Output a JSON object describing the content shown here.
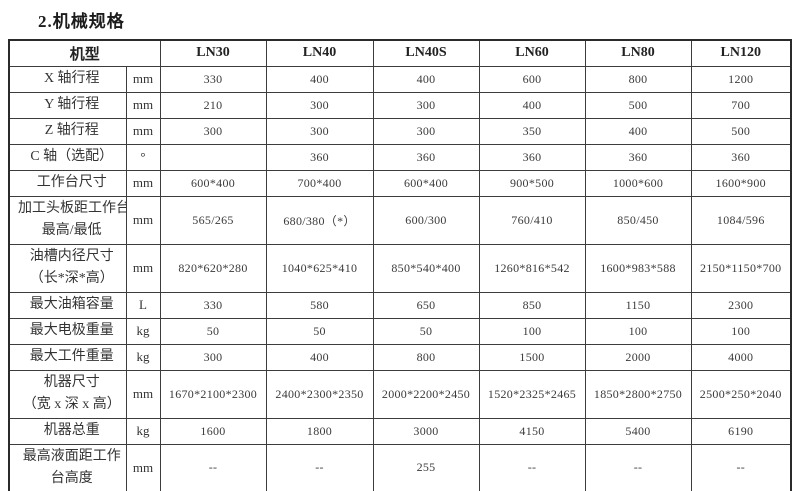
{
  "title": "2.机械规格",
  "colors": {
    "background": "#ffffff",
    "border": "#3c3c3c",
    "text": "#3a3a3a"
  },
  "table": {
    "header": {
      "model_label": "机型",
      "models": [
        "LN30",
        "LN40",
        "LN40S",
        "LN60",
        "LN80",
        "LN120"
      ]
    },
    "rows": [
      {
        "label": "X 轴行程",
        "label2": "",
        "unit": "mm",
        "values": [
          "330",
          "400",
          "400",
          "600",
          "800",
          "1200"
        ]
      },
      {
        "label": "Y 轴行程",
        "label2": "",
        "unit": "mm",
        "values": [
          "210",
          "300",
          "300",
          "400",
          "500",
          "700"
        ]
      },
      {
        "label": "Z 轴行程",
        "label2": "",
        "unit": "mm",
        "values": [
          "300",
          "300",
          "300",
          "350",
          "400",
          "500"
        ]
      },
      {
        "label": "C 轴（选配）",
        "label2": "",
        "unit": "°",
        "values": [
          "",
          "360",
          "360",
          "360",
          "360",
          "360"
        ]
      },
      {
        "label": "工作台尺寸",
        "label2": "",
        "unit": "mm",
        "values": [
          "600*400",
          "700*400",
          "600*400",
          "900*500",
          "1000*600",
          "1600*900"
        ]
      },
      {
        "label": "加工头板距工作台",
        "label2": "最高/最低",
        "unit": "mm",
        "values": [
          "565/265",
          "680/380（*）",
          "600/300",
          "760/410",
          "850/450",
          "1084/596"
        ]
      },
      {
        "label": "油槽内径尺寸",
        "label2": "（长*深*高）",
        "unit": "mm",
        "values": [
          "820*620*280",
          "1040*625*410",
          "850*540*400",
          "1260*816*542",
          "1600*983*588",
          "2150*1150*700"
        ]
      },
      {
        "label": "最大油箱容量",
        "label2": "",
        "unit": "L",
        "values": [
          "330",
          "580",
          "650",
          "850",
          "1150",
          "2300"
        ]
      },
      {
        "label": "最大电极重量",
        "label2": "",
        "unit": "kg",
        "values": [
          "50",
          "50",
          "50",
          "100",
          "100",
          "100"
        ]
      },
      {
        "label": "最大工件重量",
        "label2": "",
        "unit": "kg",
        "values": [
          "300",
          "400",
          "800",
          "1500",
          "2000",
          "4000"
        ]
      },
      {
        "label": "机器尺寸",
        "label2": "（宽 x 深 x 高）",
        "unit": "mm",
        "values": [
          "1670*2100*2300",
          "2400*2300*2350",
          "2000*2200*2450",
          "1520*2325*2465",
          "1850*2800*2750",
          "2500*250*2040"
        ]
      },
      {
        "label": "机器总重",
        "label2": "",
        "unit": "kg",
        "values": [
          "1600",
          "1800",
          "3000",
          "4150",
          "5400",
          "6190"
        ]
      },
      {
        "label": "最高液面距工作",
        "label2": "台高度",
        "unit": "mm",
        "values": [
          "--",
          "--",
          "255",
          "--",
          "--",
          "--"
        ]
      }
    ]
  }
}
